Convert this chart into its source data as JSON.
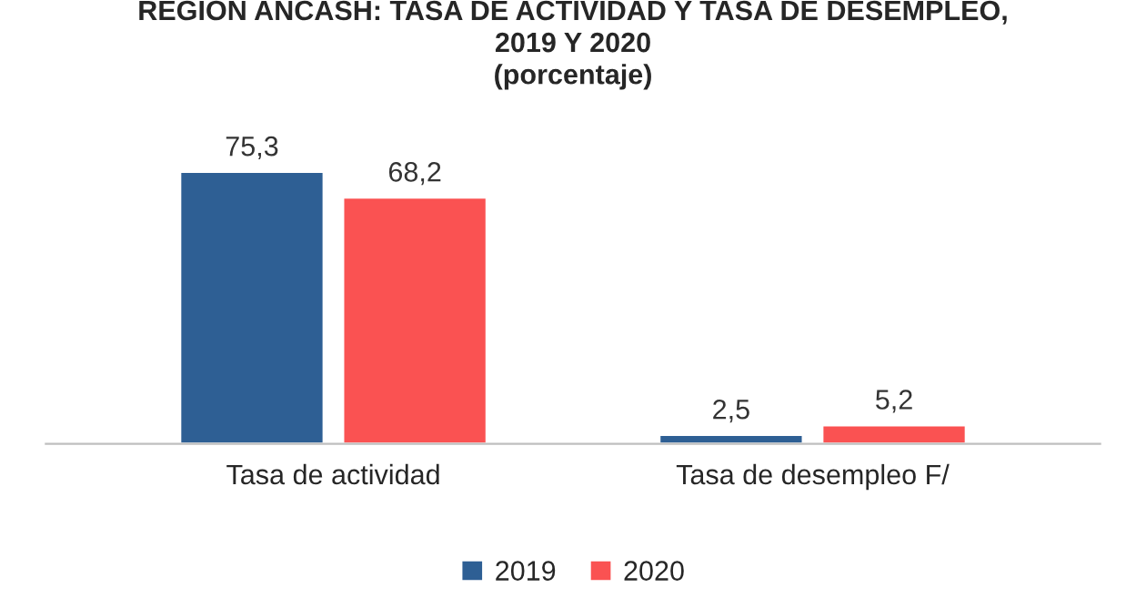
{
  "chart_data": {
    "type": "bar",
    "title": "REGION ANCASH: TASA DE ACTIVIDAD Y TASA DE DESEMPLEO,\n2019 Y 2020",
    "subtitle": "(porcentaje)",
    "categories": [
      "Tasa de actividad",
      "Tasa de desempleo F/"
    ],
    "series": [
      {
        "name": "2019",
        "color": "#2e5f94",
        "values": [
          75.3,
          2.5
        ],
        "value_labels": [
          "75,3",
          "2,5"
        ]
      },
      {
        "name": "2020",
        "color": "#fa5252",
        "values": [
          68.2,
          5.2
        ],
        "value_labels": [
          "68,2",
          "5,2"
        ]
      }
    ],
    "legend": "bottom",
    "grid": false
  }
}
